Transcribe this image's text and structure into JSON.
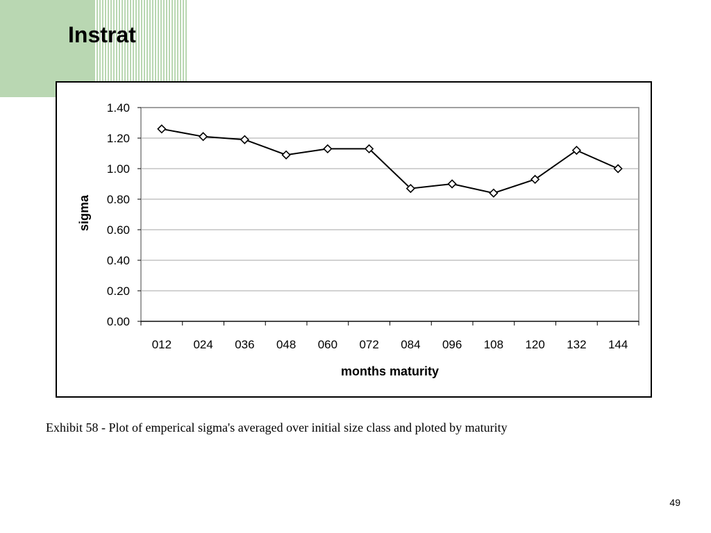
{
  "slide": {
    "title": "Instrat",
    "caption": "Exhibit 58 - Plot of emperical sigma's averaged over initial size class and ploted by maturity",
    "page_number": "49"
  },
  "colors": {
    "decor": "#b9d7b2",
    "line": "#000000",
    "grid": "#a6a6a6"
  },
  "chart_data": {
    "type": "line",
    "title": "",
    "xlabel": "months maturity",
    "ylabel": "sigma",
    "categories": [
      "012",
      "024",
      "036",
      "048",
      "060",
      "072",
      "084",
      "096",
      "108",
      "120",
      "132",
      "144"
    ],
    "series": [
      {
        "values": [
          1.26,
          1.21,
          1.19,
          1.09,
          1.13,
          1.13,
          0.87,
          0.9,
          0.84,
          0.93,
          1.12,
          1.0
        ],
        "marker": "diamond"
      }
    ],
    "ylim": [
      0,
      1.4
    ],
    "yticks": [
      "0.00",
      "0.20",
      "0.40",
      "0.60",
      "0.80",
      "1.00",
      "1.20",
      "1.40"
    ],
    "grid": true,
    "legend": "none"
  }
}
